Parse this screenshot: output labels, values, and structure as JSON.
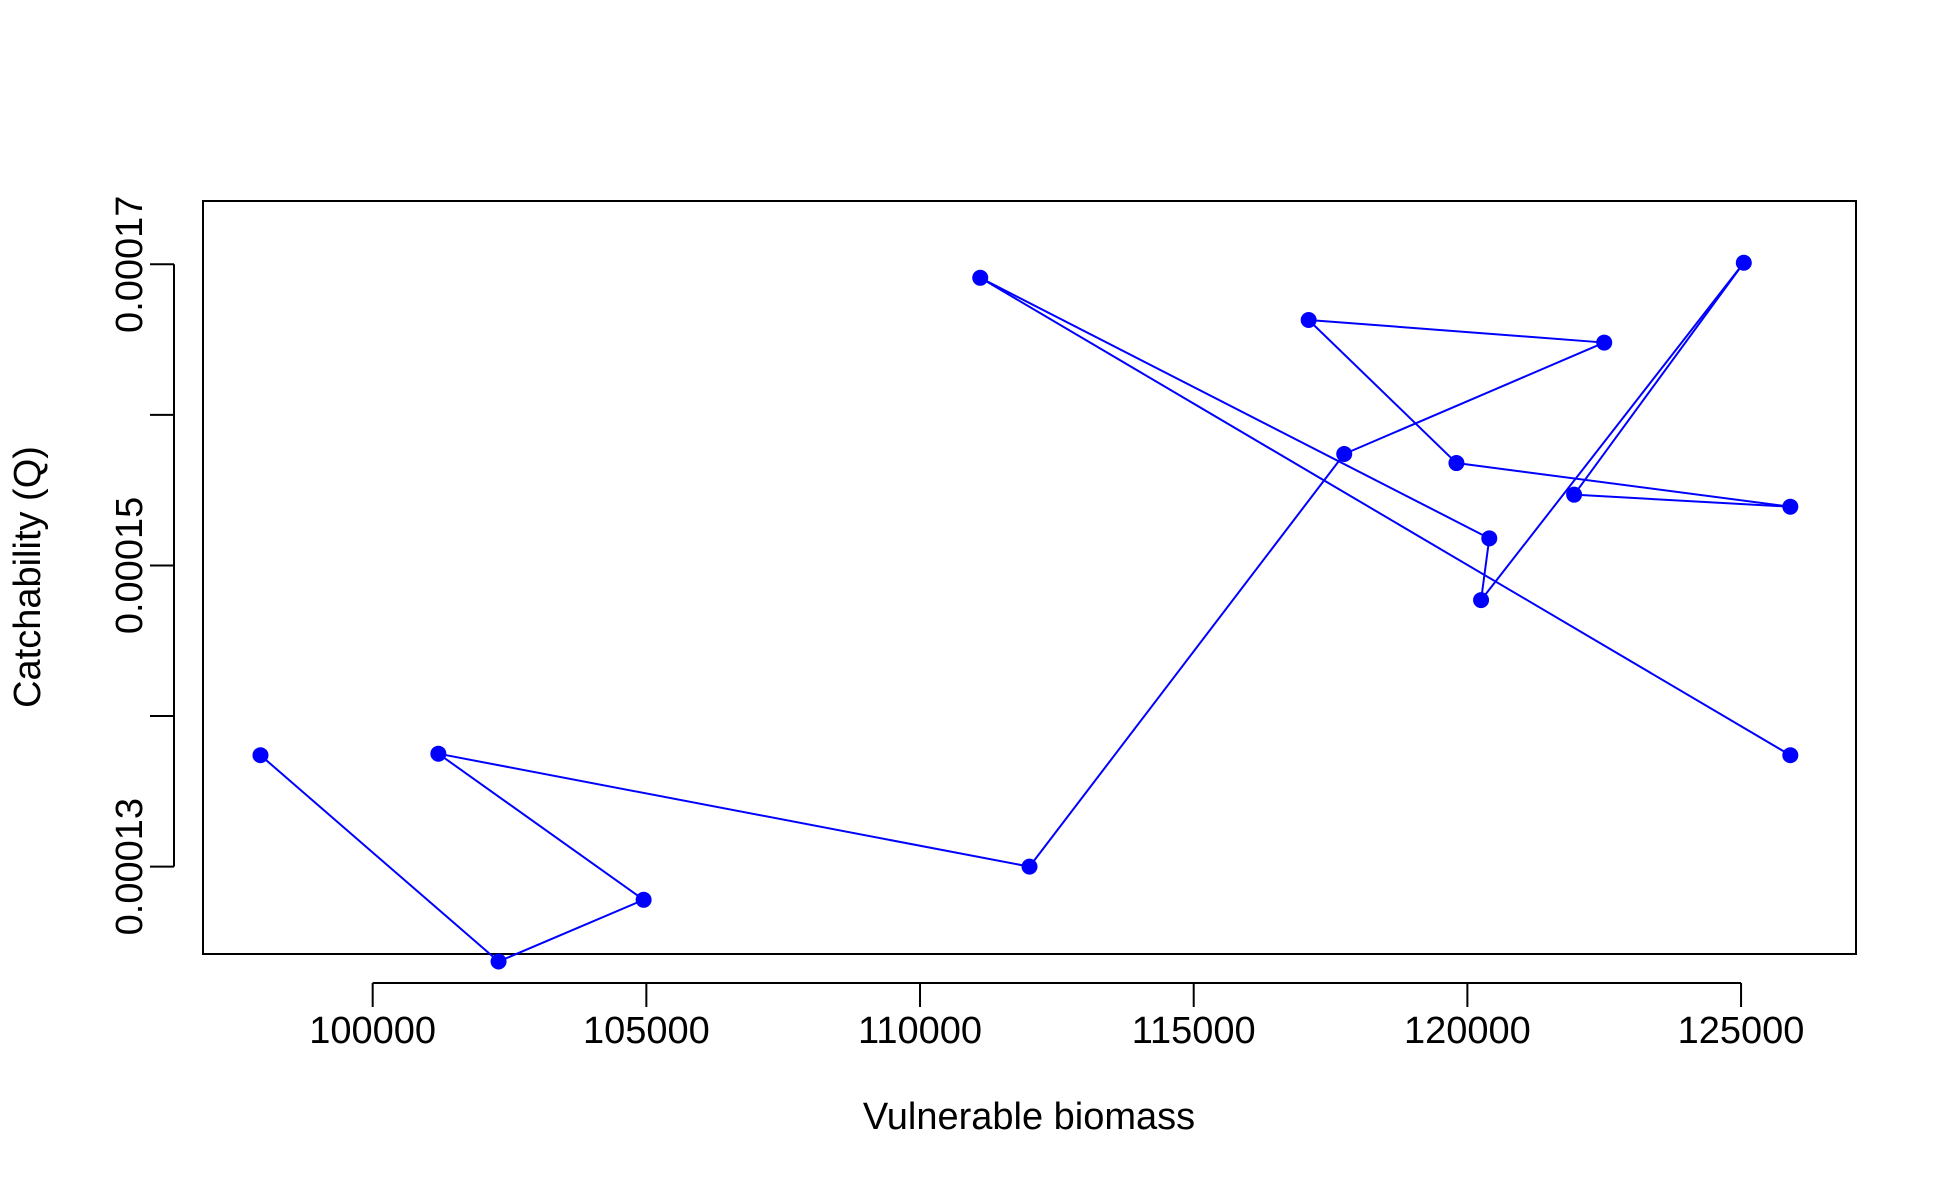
{
  "chart_data": {
    "type": "line",
    "title": "",
    "xlabel": "Vulnerable biomass",
    "ylabel": "Catchability (Q)",
    "xlim": [
      96900,
      127100
    ],
    "ylim": [
      0.0001242,
      0.0001742
    ],
    "x_ticks": [
      100000,
      105000,
      110000,
      115000,
      120000,
      125000
    ],
    "y_ticks": [
      0.00013,
      0.00014,
      0.00015,
      0.00016,
      0.00017
    ],
    "y_tick_labels": [
      "0.00013",
      "",
      "0.00015",
      "",
      "0.00017"
    ],
    "grid": false,
    "series": [
      {
        "color": "#0000FF",
        "markers": true,
        "x": [
          97950,
          102300,
          104950,
          101200,
          112000,
          117750,
          122500,
          117100,
          119800,
          125900,
          121950,
          125050,
          120250,
          120400,
          111100,
          125900
        ],
        "y": [
          0.0001374,
          0.0001237,
          0.0001278,
          0.0001375,
          0.00013,
          0.0001574,
          0.0001648,
          0.0001663,
          0.0001568,
          0.0001539,
          0.0001547,
          0.0001701,
          0.0001477,
          0.0001518,
          0.0001691,
          0.0001374
        ]
      }
    ]
  }
}
